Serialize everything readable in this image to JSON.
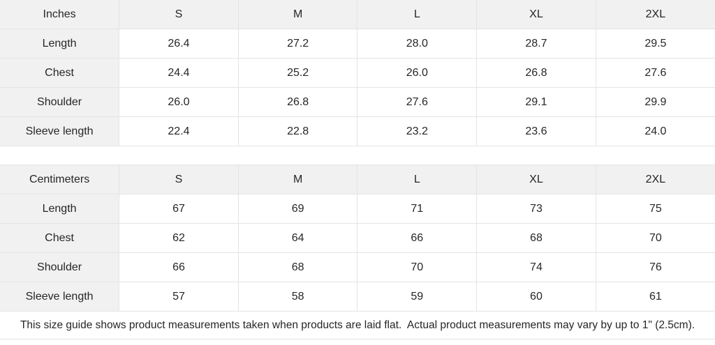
{
  "colors": {
    "header_background": "#f1f1f1",
    "label_background": "#f1f1f1",
    "cell_background": "#ffffff",
    "border": "#e4e4e4",
    "text": "#262626"
  },
  "size_guide": {
    "inches": {
      "unit_label": "Inches",
      "sizes": [
        "S",
        "M",
        "L",
        "XL",
        "2XL"
      ],
      "rows": [
        {
          "label": "Length",
          "values": [
            "26.4",
            "27.2",
            "28.0",
            "28.7",
            "29.5"
          ]
        },
        {
          "label": "Chest",
          "values": [
            "24.4",
            "25.2",
            "26.0",
            "26.8",
            "27.6"
          ]
        },
        {
          "label": "Shoulder",
          "values": [
            "26.0",
            "26.8",
            "27.6",
            "29.1",
            "29.9"
          ]
        },
        {
          "label": "Sleeve length",
          "values": [
            "22.4",
            "22.8",
            "23.2",
            "23.6",
            "24.0"
          ]
        }
      ]
    },
    "centimeters": {
      "unit_label": "Centimeters",
      "sizes": [
        "S",
        "M",
        "L",
        "XL",
        "2XL"
      ],
      "rows": [
        {
          "label": "Length",
          "values": [
            "67",
            "69",
            "71",
            "73",
            "75"
          ]
        },
        {
          "label": "Chest",
          "values": [
            "62",
            "64",
            "66",
            "68",
            "70"
          ]
        },
        {
          "label": "Shoulder",
          "values": [
            "66",
            "68",
            "70",
            "74",
            "76"
          ]
        },
        {
          "label": "Sleeve length",
          "values": [
            "57",
            "58",
            "59",
            "60",
            "61"
          ]
        }
      ]
    },
    "footnote": "This size guide shows product measurements taken when products are laid flat.  Actual product measurements may vary by up to 1\" (2.5cm)."
  }
}
